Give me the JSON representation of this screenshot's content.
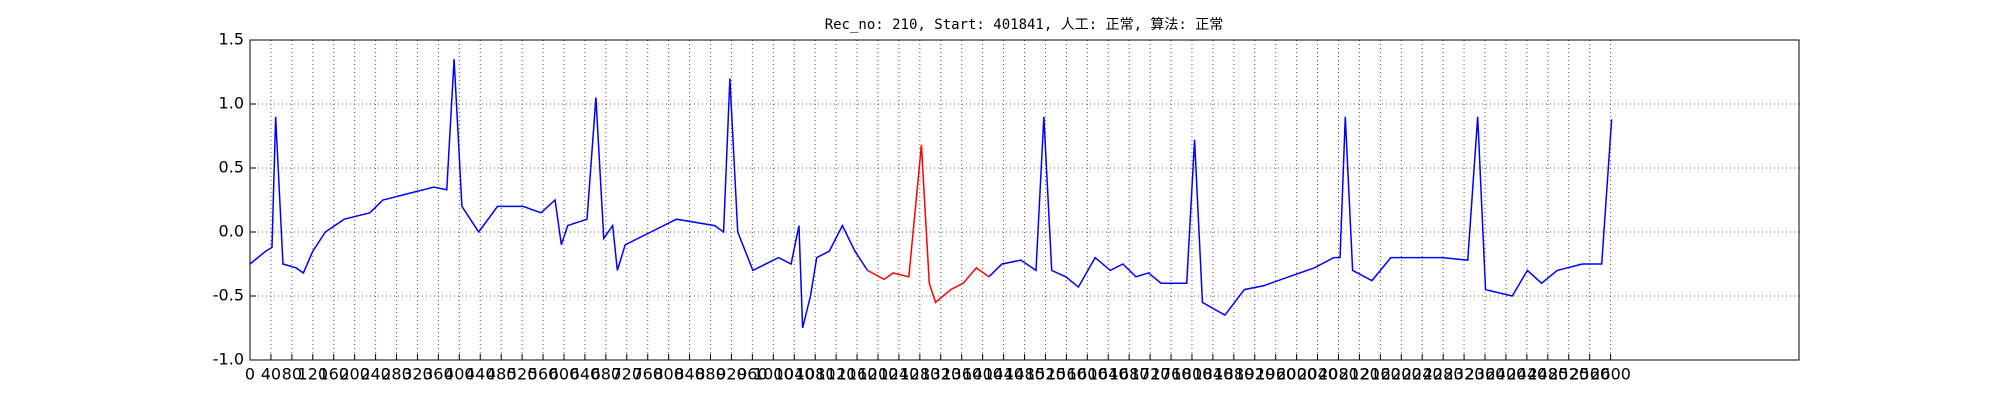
{
  "chart_data": {
    "type": "line",
    "title": "Rec_no: 210, Start: 401841, 人工: 正常, 算法: 正常",
    "x": [
      0,
      30,
      42,
      49,
      63,
      88,
      102,
      120,
      144,
      180,
      229,
      254,
      302,
      351,
      376,
      390,
      405,
      437,
      473,
      522,
      556,
      583,
      595,
      607,
      644,
      661,
      676,
      693,
      702,
      717,
      766,
      815,
      888,
      905,
      917,
      932,
      961,
      1010,
      1034,
      1049,
      1056,
      1071,
      1083,
      1107,
      1132,
      1156,
      1180,
      1212,
      1229,
      1259,
      1283,
      1298,
      1310,
      1339,
      1363,
      1388,
      1412,
      1437,
      1473,
      1502,
      1517,
      1532,
      1559,
      1583,
      1615,
      1644,
      1668,
      1693,
      1717,
      1741,
      1790,
      1805,
      1820,
      1863,
      1900,
      1937,
      1985,
      2034,
      2071,
      2083,
      2093,
      2107,
      2144,
      2180,
      2229,
      2278,
      2327,
      2346,
      2361,
      2412,
      2441,
      2468,
      2498,
      2546,
      2583,
      2602
    ],
    "series": [
      {
        "color": "#0000ff",
        "values": [
          -0.25,
          -0.15,
          -0.12,
          0.9,
          -0.25,
          -0.28,
          -0.32,
          -0.15,
          0.0,
          0.1,
          0.15,
          0.25,
          0.3,
          0.35,
          0.33,
          1.35,
          0.2,
          0.0,
          0.2,
          0.2,
          0.15,
          0.25,
          -0.1,
          0.05,
          0.1,
          1.05,
          -0.05,
          0.05,
          -0.3,
          -0.1,
          0.0,
          0.1,
          0.05,
          0.0,
          1.2,
          0.0,
          -0.3,
          -0.2,
          -0.25,
          0.05,
          -0.75,
          -0.5,
          -0.2,
          -0.15,
          0.05,
          -0.15,
          -0.3,
          null,
          null,
          null,
          null,
          null,
          null,
          null,
          null,
          null,
          -0.35,
          -0.25,
          -0.22,
          -0.3,
          0.9,
          -0.3,
          -0.35,
          -0.43,
          -0.2,
          -0.3,
          -0.25,
          -0.35,
          -0.32,
          -0.4,
          -0.4,
          0.72,
          -0.55,
          -0.65,
          -0.45,
          -0.42,
          -0.35,
          -0.28,
          -0.2,
          -0.2,
          0.9,
          -0.3,
          -0.38,
          -0.2,
          -0.2,
          -0.2,
          -0.22,
          0.9,
          -0.45,
          -0.5,
          -0.3,
          -0.4,
          -0.3,
          -0.25,
          -0.25,
          0.88
        ]
      },
      {
        "color": "#ff0000",
        "values": [
          null,
          null,
          null,
          null,
          null,
          null,
          null,
          null,
          null,
          null,
          null,
          null,
          null,
          null,
          null,
          null,
          null,
          null,
          null,
          null,
          null,
          null,
          null,
          null,
          null,
          null,
          null,
          null,
          null,
          null,
          null,
          null,
          null,
          null,
          null,
          null,
          null,
          null,
          null,
          null,
          null,
          null,
          null,
          null,
          null,
          null,
          -0.3,
          -0.37,
          -0.32,
          -0.35,
          0.68,
          -0.4,
          -0.55,
          -0.45,
          -0.4,
          -0.28,
          -0.35,
          null,
          null,
          null,
          null,
          null,
          null,
          null,
          null,
          null,
          null,
          null,
          null,
          null,
          null,
          null,
          null,
          null,
          null,
          null,
          null,
          null,
          null,
          null,
          null,
          null,
          null,
          null,
          null,
          null,
          null,
          null,
          null,
          null,
          null,
          null,
          null,
          null,
          null,
          null
        ]
      }
    ],
    "xlim": [
      0,
      2960
    ],
    "xticks": [
      0,
      40,
      80,
      120,
      160,
      200,
      240,
      280,
      320,
      360,
      400,
      440,
      480,
      520,
      560,
      600,
      640,
      680,
      720,
      760,
      800,
      840,
      880,
      920,
      960,
      1000,
      1040,
      1080,
      1120,
      1160,
      1200,
      1240,
      1280,
      1320,
      1360,
      1400,
      1440,
      1480,
      1520,
      1560,
      1600,
      1640,
      1680,
      1720,
      1760,
      1800,
      1840,
      1880,
      1920,
      1960,
      2000,
      2040,
      2080,
      2120,
      2160,
      2200,
      2240,
      2280,
      2320,
      2360,
      2400,
      2440,
      2480,
      2520,
      2560,
      2600
    ],
    "ylim": [
      -1.0,
      1.5
    ],
    "yticks": [
      {
        "value": -1.0,
        "label": "-1.0"
      },
      -0.5,
      {
        "value": 0.0,
        "label": "0.0"
      },
      0.5,
      {
        "value": 1.0,
        "label": "1.0"
      },
      1.5
    ],
    "grid": true
  }
}
